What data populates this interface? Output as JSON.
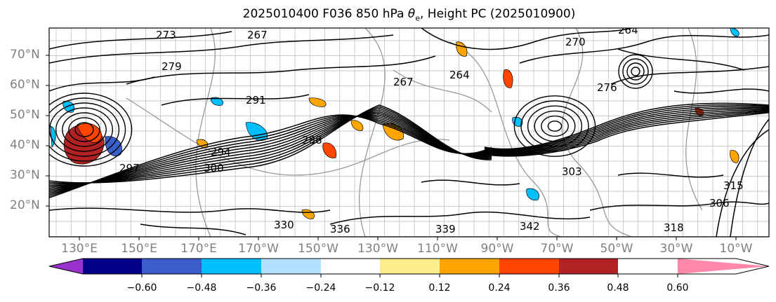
{
  "title": "2025010400 F036 850 hPa",
  "title_symbol": "θ",
  "title_subscript": "e",
  "title_suffix": ", Height PC (2025010900)",
  "lat_labels": [
    "70°N",
    "60°N",
    "50°N",
    "40°N",
    "30°N",
    "20°N"
  ],
  "lon_labels": [
    "130°E",
    "150°E",
    "170°E",
    "170°W",
    "150°W",
    "130°W",
    "110°W",
    "90°W",
    "70°W",
    "50°W",
    "30°W",
    "10°W"
  ],
  "contour_labels": [
    "273",
    "267",
    "264",
    "270",
    "279",
    "294",
    "297",
    "300",
    "288",
    "267",
    "264",
    "276",
    "291",
    "303",
    "306",
    "318",
    "339",
    "342",
    "330",
    "336",
    "315"
  ],
  "colorbar": {
    "levels": [
      "−0.60",
      "−0.48",
      "−0.36",
      "−0.24",
      "−0.12",
      "0.12",
      "0.24",
      "0.36",
      "0.48",
      "0.60"
    ],
    "colors": [
      "#9932CC",
      "#00008B",
      "#3A5FCD",
      "#00BFFF",
      "#B0E2FF",
      "#FFFFFF",
      "#FFEC8B",
      "#FFA500",
      "#FF4500",
      "#B22222",
      "#FF88AA"
    ]
  }
}
